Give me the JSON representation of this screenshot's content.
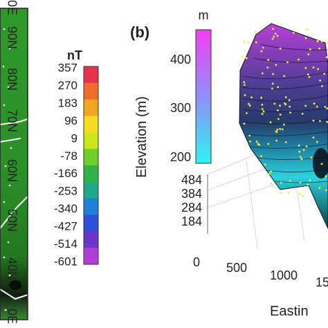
{
  "panel_a": {
    "lat_labels": [
      "90N",
      "80N",
      "70N",
      "60N",
      "50N",
      "40N"
    ],
    "edge_top_label": "0E",
    "edge_bottom_label": "0E",
    "colorbar": {
      "unit": "nT",
      "ticks": [
        "357",
        "270",
        "183",
        "96",
        "9",
        "-78",
        "-166",
        "-253",
        "-340",
        "-427",
        "-514",
        "-601"
      ],
      "colors": [
        "#e8324b",
        "#ef6b2c",
        "#f2a521",
        "#f4dc1f",
        "#cbe71b",
        "#6fcf2a",
        "#2fb24a",
        "#1fa98a",
        "#1e7fd6",
        "#2e4fd8",
        "#6a37c9",
        "#b03fd6"
      ]
    }
  },
  "panel_b": {
    "panel_label": "(b)",
    "colorbar": {
      "unit": "m",
      "ticks": [
        "400",
        "300",
        "200"
      ],
      "colors": [
        "#f23ff2",
        "#5ab4ff",
        "#2ef4f2"
      ]
    },
    "z_axis": {
      "label": "Elevation (m)",
      "ticks": [
        "484",
        "384",
        "284",
        "184"
      ]
    },
    "x_axis": {
      "label": "Eastin",
      "ticks": [
        "0",
        "500",
        "1000",
        "15"
      ]
    }
  }
}
